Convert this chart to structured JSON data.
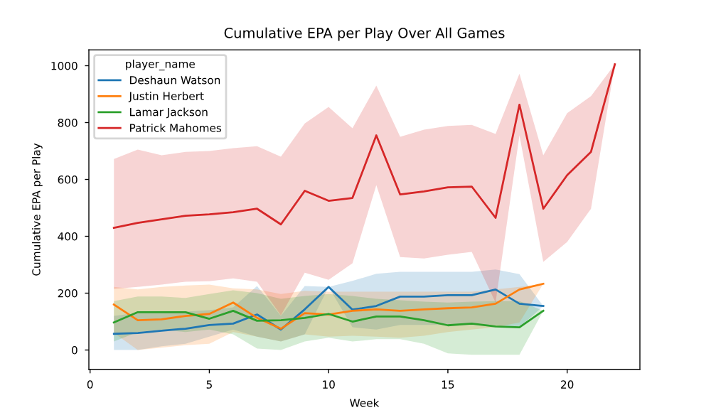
{
  "chart_data": {
    "type": "line",
    "title": "Cumulative EPA per Play Over All Games",
    "xlabel": "Week",
    "ylabel": "Cumulative EPA per Play",
    "legend_title": "player_name",
    "legend": "top left",
    "grid": false,
    "x": [
      1,
      2,
      3,
      4,
      5,
      6,
      7,
      8,
      9,
      10,
      11,
      12,
      13,
      14,
      15,
      16,
      17,
      18,
      19
    ],
    "xlim": [
      -0.05,
      23.05
    ],
    "xticks": [
      0,
      5,
      10,
      15,
      20
    ],
    "ylim": [
      -68,
      1056
    ],
    "yticks": [
      0,
      200,
      400,
      600,
      800,
      1000
    ],
    "series": [
      {
        "name": "Deshaun Watson",
        "color": "#1f77b4",
        "values": [
          57,
          60,
          68,
          75,
          88,
          93,
          125,
          72,
          143,
          222,
          142,
          155,
          188,
          188,
          193,
          193,
          213,
          163,
          155
        ],
        "lower": [
          0,
          0,
          13,
          22,
          47,
          72,
          47,
          30,
          55,
          222,
          80,
          72,
          88,
          88,
          88,
          88,
          88,
          80,
          155
        ],
        "upper": [
          120,
          130,
          130,
          135,
          140,
          150,
          225,
          120,
          225,
          222,
          243,
          268,
          275,
          275,
          275,
          275,
          283,
          267,
          155
        ]
      },
      {
        "name": "Justin Herbert",
        "color": "#ff7f0e",
        "values": [
          160,
          105,
          108,
          120,
          127,
          167,
          113,
          75,
          130,
          125,
          138,
          143,
          138,
          143,
          147,
          150,
          163,
          213,
          233
        ],
        "lower": [
          60,
          0,
          8,
          17,
          22,
          63,
          47,
          30,
          55,
          47,
          50,
          47,
          43,
          50,
          63,
          72,
          80,
          97,
          233
        ],
        "upper": [
          222,
          213,
          222,
          227,
          230,
          217,
          213,
          197,
          208,
          205,
          205,
          205,
          205,
          205,
          205,
          205,
          213,
          222,
          233
        ]
      },
      {
        "name": "Lamar Jackson",
        "color": "#2ca02c",
        "values": [
          97,
          133,
          133,
          133,
          110,
          138,
          103,
          105,
          113,
          127,
          100,
          118,
          118,
          105,
          87,
          93,
          83,
          80,
          138
        ],
        "lower": [
          30,
          63,
          72,
          63,
          72,
          55,
          5,
          0,
          30,
          43,
          30,
          38,
          38,
          22,
          -12,
          -17,
          -17,
          -17,
          138
        ],
        "upper": [
          172,
          188,
          188,
          183,
          197,
          210,
          200,
          180,
          190,
          197,
          190,
          180,
          175,
          170,
          167,
          170,
          172,
          172,
          138
        ]
      },
      {
        "name": "Patrick Mahomes",
        "color": "#d62728",
        "x": [
          1,
          2,
          3,
          4,
          5,
          6,
          7,
          8,
          9,
          10,
          11,
          12,
          13,
          14,
          15,
          16,
          17,
          18,
          19,
          20,
          21,
          22
        ],
        "values": [
          430,
          447,
          460,
          472,
          477,
          485,
          497,
          442,
          560,
          525,
          535,
          755,
          547,
          558,
          572,
          575,
          465,
          863,
          497,
          615,
          697,
          1005
        ],
        "lower": [
          215,
          222,
          230,
          240,
          242,
          252,
          240,
          122,
          272,
          247,
          305,
          580,
          327,
          322,
          335,
          345,
          167,
          755,
          310,
          380,
          497,
          1005
        ],
        "upper": [
          672,
          705,
          685,
          697,
          700,
          710,
          717,
          680,
          797,
          855,
          780,
          930,
          750,
          775,
          788,
          792,
          760,
          972,
          685,
          833,
          893,
          1005
        ]
      }
    ]
  }
}
